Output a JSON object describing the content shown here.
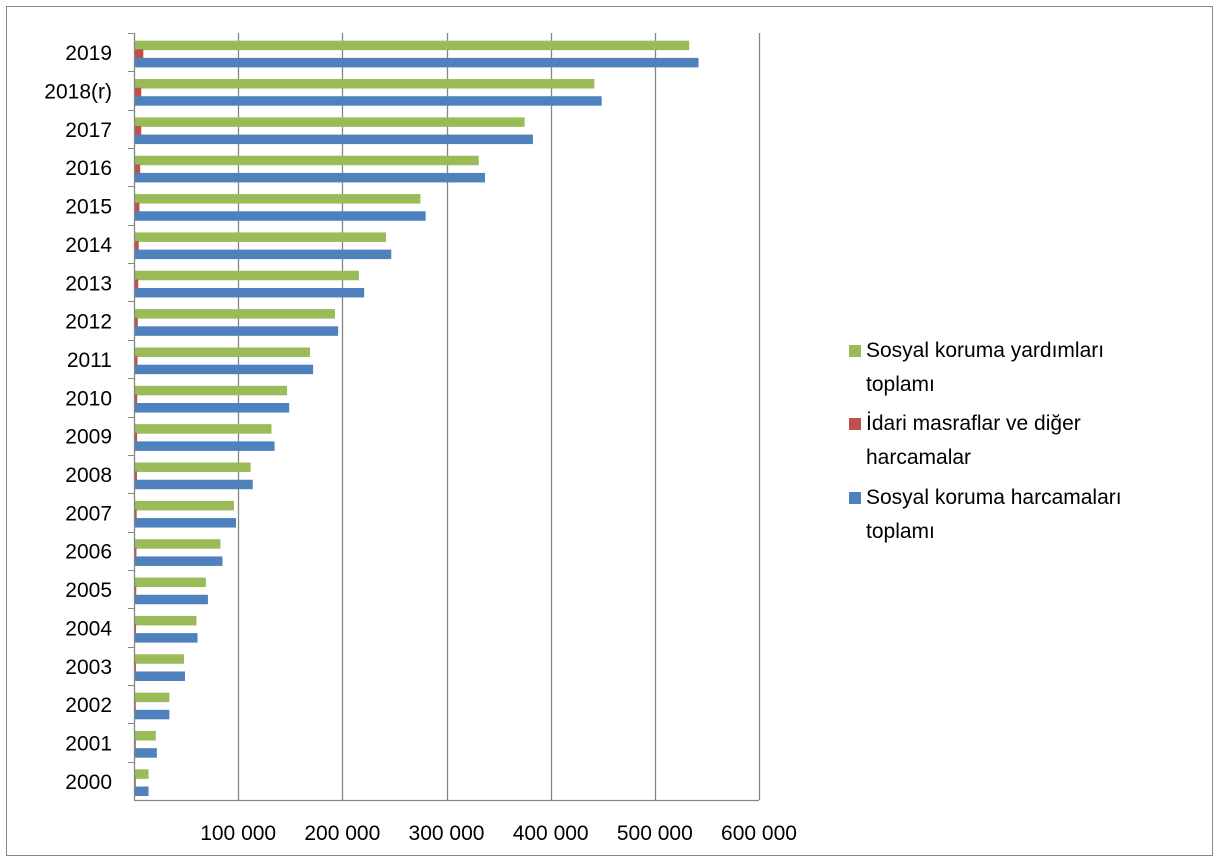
{
  "chart_data": {
    "type": "bar",
    "orientation": "horizontal",
    "title": "",
    "xlabel": "",
    "ylabel": "",
    "categories": [
      "2000",
      "2001",
      "2002",
      "2003",
      "2004",
      "2005",
      "2006",
      "2007",
      "2008",
      "2009",
      "2010",
      "2011",
      "2012",
      "2013",
      "2014",
      "2015",
      "2016",
      "2017",
      "2018(r)",
      "2019"
    ],
    "xlim": [
      0,
      600000
    ],
    "x_ticks": [
      100000,
      200000,
      300000,
      400000,
      500000,
      600000
    ],
    "x_tick_labels": [
      "100 000",
      "200 000",
      "300 000",
      "400 000",
      "500 000",
      "600 000"
    ],
    "grid": true,
    "legend_position": "right",
    "series": [
      {
        "name": "Sosyal koruma yardımları toplamı",
        "color": "#9bbb59",
        "values": [
          13000,
          20000,
          33000,
          47000,
          59000,
          68000,
          82000,
          95000,
          111000,
          131000,
          146000,
          168000,
          192000,
          215000,
          241000,
          274000,
          330000,
          374000,
          441000,
          532000
        ]
      },
      {
        "name": "İdari masraflar ve diğer harcamalar",
        "color": "#c0504d",
        "values": [
          300,
          500,
          700,
          900,
          1000,
          1200,
          1400,
          1600,
          1900,
          2000,
          2100,
          2400,
          2700,
          3100,
          3600,
          4300,
          5000,
          6000,
          6000,
          8000
        ]
      },
      {
        "name": "Sosyal koruma harcamaları toplamı",
        "color": "#4f81bd",
        "values": [
          13000,
          21000,
          33000,
          48000,
          60000,
          70000,
          84000,
          97000,
          113000,
          134000,
          148000,
          171000,
          195000,
          220000,
          246000,
          279000,
          336000,
          382000,
          448000,
          541000
        ]
      }
    ]
  },
  "legend_items": [
    {
      "lines": [
        "Sosyal koruma yardımları",
        "toplamı"
      ],
      "color": "#9bbb59",
      "icon": "green-square-icon"
    },
    {
      "lines": [
        "İdari masraflar ve diğer",
        "harcamalar"
      ],
      "color": "#c0504d",
      "icon": "red-square-icon"
    },
    {
      "lines": [
        "Sosyal koruma harcamaları",
        "toplamı"
      ],
      "color": "#4f81bd",
      "icon": "blue-square-icon"
    }
  ]
}
